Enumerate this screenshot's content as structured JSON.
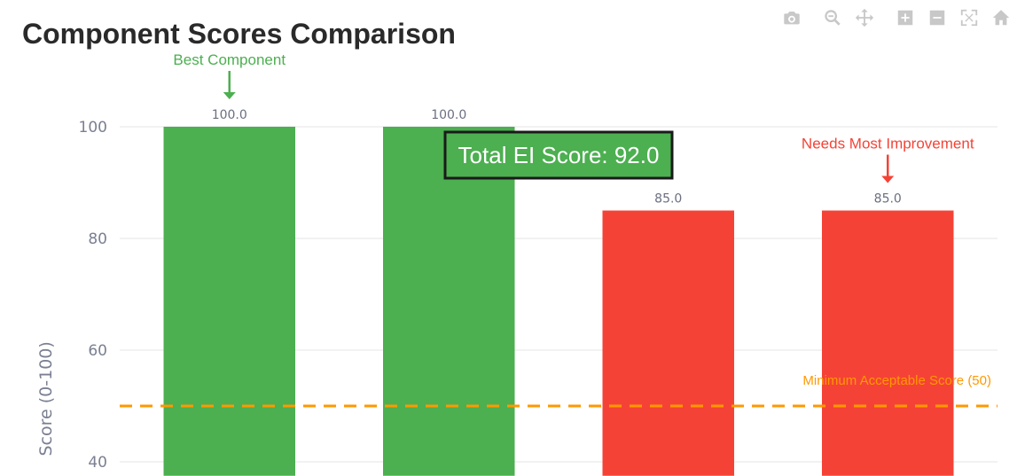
{
  "chart_data": {
    "type": "bar",
    "title": "Component Scores Comparison",
    "ylabel": "Score (0-100)",
    "xlabel": "",
    "ylim": [
      37.5,
      110
    ],
    "yticks": [
      40,
      60,
      80,
      100
    ],
    "grid": true,
    "values": [
      100.0,
      100.0,
      85.0,
      85.0
    ],
    "data_labels": [
      "100.0",
      "100.0",
      "85.0",
      "85.0"
    ],
    "bar_colors": [
      "#4caf50",
      "#4caf50",
      "#f44336",
      "#f44336"
    ],
    "reference_line": {
      "value": 50,
      "label": "Minimum Acceptable Score (50)",
      "color": "#ff9800",
      "style": "dashed"
    },
    "annotations": [
      {
        "text": "Best Component",
        "bar_index": 0,
        "color": "#4caf50"
      },
      {
        "text": "Needs Most Improvement",
        "bar_index": 3,
        "color": "#f44336"
      }
    ],
    "summary_box": {
      "text": "Total EI Score: 92.0",
      "background": "#4caf50",
      "border": "#1a1a1a"
    }
  },
  "modebar": {
    "icons": [
      "camera-icon",
      "zoom-icon",
      "pan-icon",
      "zoom-in-icon",
      "zoom-out-icon",
      "autoscale-icon",
      "home-icon"
    ]
  }
}
